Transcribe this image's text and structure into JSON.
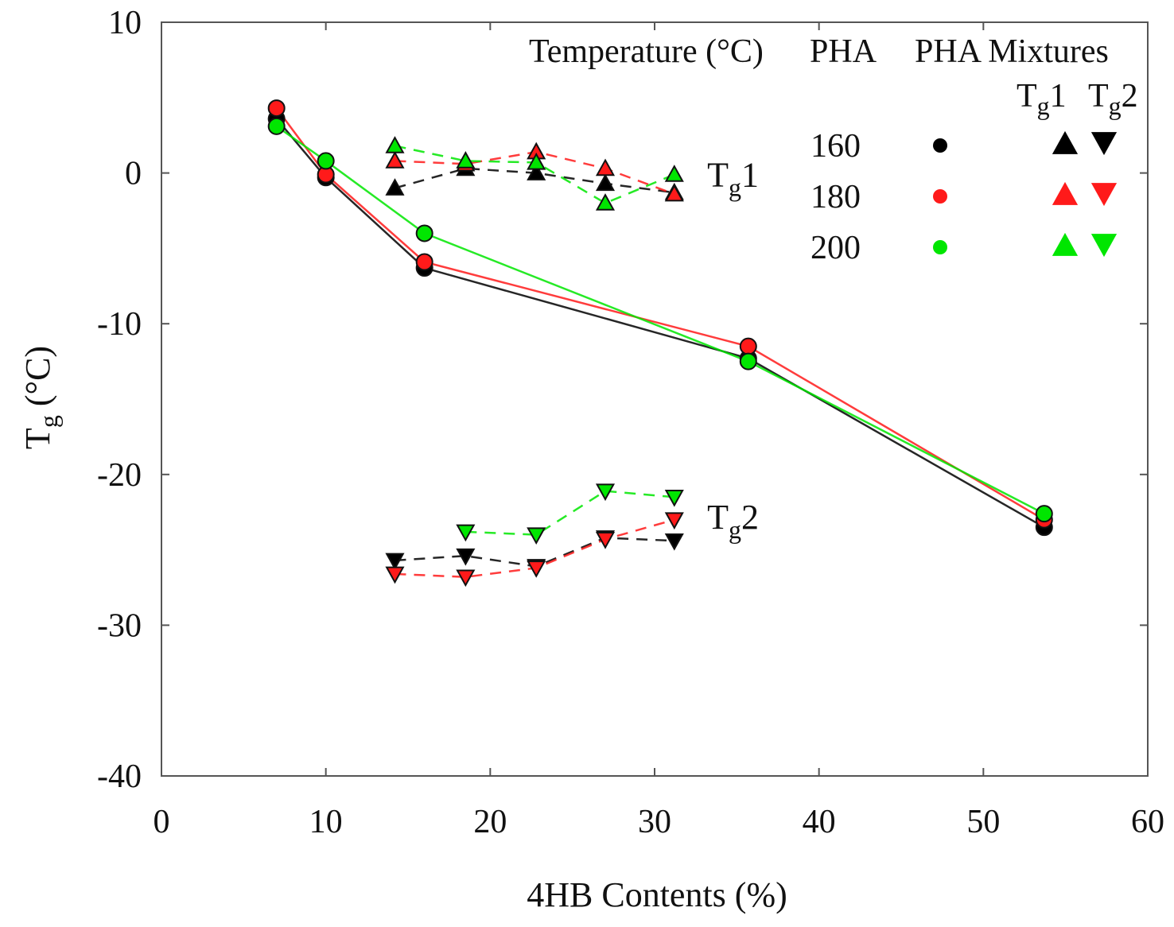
{
  "chart_data": {
    "type": "line",
    "title": "",
    "xlabel": "4HB Contents  (%)",
    "ylabel_main": "T",
    "ylabel_sub": "g",
    "ylabel_unit": " (°C)",
    "xlim": [
      0,
      60
    ],
    "ylim": [
      -40,
      10
    ],
    "xticks": [
      0,
      10,
      20,
      30,
      40,
      50,
      60
    ],
    "yticks": [
      10,
      0,
      -10,
      -20,
      -30,
      -40
    ],
    "grid": false,
    "colors": {
      "160": "#000000",
      "180": "#ff1a1a",
      "200": "#00e600"
    },
    "annotations": [
      {
        "text_main": "T",
        "text_sub": "g",
        "text_tail": "1",
        "x": 33.2,
        "y": -0.9
      },
      {
        "text_main": "T",
        "text_sub": "g",
        "text_tail": "2",
        "x": 33.2,
        "y": -23.6
      }
    ],
    "legend": {
      "position": "top-right",
      "header_temp": "Temperature (°C)",
      "header_pha": "PHA",
      "header_mix": "PHA Mixtures",
      "sub_tg1_main": "T",
      "sub_tg1_sub": "g",
      "sub_tg1_tail": "1",
      "sub_tg2_main": "T",
      "sub_tg2_sub": "g",
      "sub_tg2_tail": "2",
      "rows": [
        {
          "label": "160",
          "key": "160"
        },
        {
          "label": "180",
          "key": "180"
        },
        {
          "label": "200",
          "key": "200"
        }
      ]
    },
    "series": [
      {
        "name": "PHA 160",
        "group": "PHA",
        "temp": "160",
        "marker": "circle",
        "line": "solid",
        "x": [
          7.0,
          10.0,
          16.0,
          35.7,
          53.7
        ],
        "y": [
          3.6,
          -0.3,
          -6.3,
          -12.3,
          -23.5
        ]
      },
      {
        "name": "PHA 180",
        "group": "PHA",
        "temp": "180",
        "marker": "circle",
        "line": "solid",
        "x": [
          7.0,
          10.0,
          16.0,
          35.7,
          53.7
        ],
        "y": [
          4.3,
          -0.1,
          -5.9,
          -11.5,
          -23.0
        ]
      },
      {
        "name": "PHA 200",
        "group": "PHA",
        "temp": "200",
        "marker": "circle",
        "line": "solid",
        "x": [
          7.0,
          10.0,
          16.0,
          35.7,
          53.7
        ],
        "y": [
          3.1,
          0.8,
          -4.0,
          -12.5,
          -22.6
        ]
      },
      {
        "name": "Mixture Tg1 160",
        "group": "Tg1",
        "temp": "160",
        "marker": "triangle-up",
        "line": "dashed",
        "x": [
          14.2,
          18.5,
          22.8,
          27.0,
          31.2
        ],
        "y": [
          -1.0,
          0.3,
          0.0,
          -0.7,
          -1.3
        ]
      },
      {
        "name": "Mixture Tg1 180",
        "group": "Tg1",
        "temp": "180",
        "marker": "triangle-up",
        "line": "dashed",
        "x": [
          14.2,
          18.5,
          22.8,
          27.0,
          31.2
        ],
        "y": [
          0.8,
          0.6,
          1.4,
          0.3,
          -1.4
        ]
      },
      {
        "name": "Mixture Tg1 200",
        "group": "Tg1",
        "temp": "200",
        "marker": "triangle-up",
        "line": "dashed",
        "x": [
          14.2,
          18.5,
          22.8,
          27.0,
          31.2
        ],
        "y": [
          1.8,
          0.8,
          0.7,
          -2.0,
          -0.1
        ]
      },
      {
        "name": "Mixture Tg2 160",
        "group": "Tg2",
        "temp": "160",
        "marker": "triangle-down",
        "line": "dashed",
        "x": [
          14.2,
          18.5,
          22.8,
          27.0,
          31.2
        ],
        "y": [
          -25.7,
          -25.4,
          -26.1,
          -24.2,
          -24.4
        ]
      },
      {
        "name": "Mixture Tg2 180",
        "group": "Tg2",
        "temp": "180",
        "marker": "triangle-down",
        "line": "dashed",
        "x": [
          14.2,
          18.5,
          22.8,
          27.0,
          31.2
        ],
        "y": [
          -26.6,
          -26.8,
          -26.2,
          -24.3,
          -23.0
        ]
      },
      {
        "name": "Mixture Tg2 200",
        "group": "Tg2",
        "temp": "200",
        "marker": "triangle-down",
        "line": "dashed",
        "x": [
          18.5,
          22.8,
          27.0,
          31.2
        ],
        "y": [
          -23.8,
          -24.0,
          -21.1,
          -21.5
        ]
      }
    ]
  }
}
